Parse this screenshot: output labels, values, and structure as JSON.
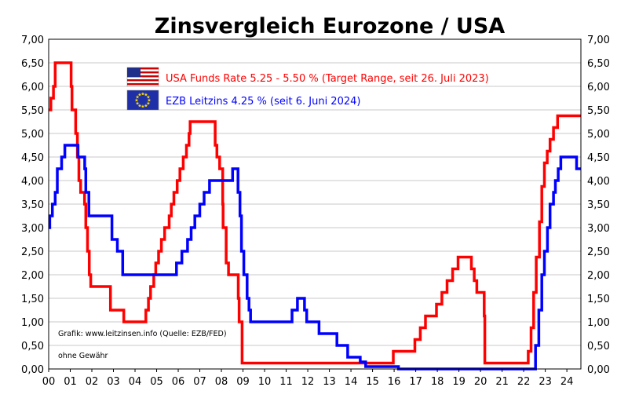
{
  "chart_data": {
    "type": "line",
    "title": "Zinsvergleich Eurozone / USA",
    "xlabel": "",
    "ylabel": "",
    "xlim": [
      2000.0,
      2024.65
    ],
    "ylim": [
      0,
      7
    ],
    "x_tick_labels": [
      "00",
      "01",
      "02",
      "03",
      "04",
      "05",
      "06",
      "07",
      "08",
      "09",
      "10",
      "11",
      "12",
      "13",
      "14",
      "15",
      "16",
      "17",
      "18",
      "19",
      "20",
      "21",
      "22",
      "23",
      "24"
    ],
    "x_tick_years": [
      2000,
      2001,
      2002,
      2003,
      2004,
      2005,
      2006,
      2007,
      2008,
      2009,
      2010,
      2011,
      2012,
      2013,
      2014,
      2015,
      2016,
      2017,
      2018,
      2019,
      2020,
      2021,
      2022,
      2023,
      2024
    ],
    "y_ticks": [
      0,
      0.5,
      1,
      1.5,
      2,
      2.5,
      3,
      3.5,
      4,
      4.5,
      5,
      5.5,
      6,
      6.5,
      7
    ],
    "y_tick_labels": [
      "0,00",
      "0,50",
      "1,00",
      "1,50",
      "2,00",
      "2,50",
      "3,00",
      "3,50",
      "4,00",
      "4,50",
      "5,00",
      "5,50",
      "6,00",
      "6,50",
      "7,00"
    ],
    "grid": true,
    "legend_position": "top-center",
    "colors": {
      "usa": "#ff0000",
      "ezb": "#0000ff",
      "grid": "#c8c8c8",
      "axis": "#000000"
    },
    "annotations": [
      "Grafik: www.leitzinsen.info (Quelle: EZB/FED)",
      "ohne Gewähr"
    ],
    "series": [
      {
        "key": "usa",
        "name": "USA Funds Rate 5.25 - 5.50 % (Target Range, seit 26. Juli 2023)",
        "flag": "usa-flag",
        "points": [
          [
            2000.0,
            5.5
          ],
          [
            2000.1,
            5.75
          ],
          [
            2000.22,
            6.0
          ],
          [
            2000.3,
            6.5
          ],
          [
            2001.0,
            6.5
          ],
          [
            2001.04,
            6.0
          ],
          [
            2001.08,
            5.5
          ],
          [
            2001.25,
            5.0
          ],
          [
            2001.33,
            4.5
          ],
          [
            2001.4,
            4.0
          ],
          [
            2001.48,
            3.75
          ],
          [
            2001.66,
            3.5
          ],
          [
            2001.72,
            3.0
          ],
          [
            2001.8,
            2.5
          ],
          [
            2001.88,
            2.0
          ],
          [
            2001.95,
            1.75
          ],
          [
            2002.86,
            1.25
          ],
          [
            2003.48,
            1.0
          ],
          [
            2004.5,
            1.25
          ],
          [
            2004.62,
            1.5
          ],
          [
            2004.72,
            1.75
          ],
          [
            2004.87,
            2.0
          ],
          [
            2004.96,
            2.25
          ],
          [
            2005.09,
            2.5
          ],
          [
            2005.22,
            2.75
          ],
          [
            2005.37,
            3.0
          ],
          [
            2005.58,
            3.25
          ],
          [
            2005.68,
            3.5
          ],
          [
            2005.8,
            3.75
          ],
          [
            2005.95,
            4.0
          ],
          [
            2006.08,
            4.25
          ],
          [
            2006.23,
            4.5
          ],
          [
            2006.38,
            4.75
          ],
          [
            2006.5,
            5.0
          ],
          [
            2006.55,
            5.25
          ],
          [
            2007.71,
            4.75
          ],
          [
            2007.79,
            4.5
          ],
          [
            2007.92,
            4.25
          ],
          [
            2008.06,
            3.5
          ],
          [
            2008.08,
            3.0
          ],
          [
            2008.22,
            2.25
          ],
          [
            2008.33,
            2.0
          ],
          [
            2008.78,
            1.5
          ],
          [
            2008.82,
            1.0
          ],
          [
            2008.96,
            0.125
          ],
          [
            2015.96,
            0.375
          ],
          [
            2016.96,
            0.625
          ],
          [
            2017.21,
            0.875
          ],
          [
            2017.45,
            1.125
          ],
          [
            2017.96,
            1.375
          ],
          [
            2018.21,
            1.625
          ],
          [
            2018.45,
            1.875
          ],
          [
            2018.71,
            2.125
          ],
          [
            2018.96,
            2.375
          ],
          [
            2019.58,
            2.125
          ],
          [
            2019.71,
            1.875
          ],
          [
            2019.83,
            1.625
          ],
          [
            2020.17,
            1.125
          ],
          [
            2020.2,
            0.125
          ],
          [
            2022.21,
            0.375
          ],
          [
            2022.34,
            0.875
          ],
          [
            2022.46,
            1.625
          ],
          [
            2022.58,
            2.375
          ],
          [
            2022.73,
            3.125
          ],
          [
            2022.84,
            3.875
          ],
          [
            2022.96,
            4.375
          ],
          [
            2023.09,
            4.625
          ],
          [
            2023.22,
            4.875
          ],
          [
            2023.38,
            5.125
          ],
          [
            2023.57,
            5.375
          ],
          [
            2024.65,
            5.375
          ]
        ]
      },
      {
        "key": "ezb",
        "name": "EZB Leitzins 4.25 %  (seit 6. Juni 2024)",
        "flag": "eu-flag",
        "points": [
          [
            2000.0,
            3.0
          ],
          [
            2000.05,
            3.25
          ],
          [
            2000.17,
            3.5
          ],
          [
            2000.3,
            3.75
          ],
          [
            2000.4,
            4.25
          ],
          [
            2000.6,
            4.5
          ],
          [
            2000.75,
            4.75
          ],
          [
            2001.36,
            4.5
          ],
          [
            2001.67,
            4.25
          ],
          [
            2001.72,
            3.75
          ],
          [
            2001.86,
            3.25
          ],
          [
            2002.93,
            2.75
          ],
          [
            2003.18,
            2.5
          ],
          [
            2003.43,
            2.0
          ],
          [
            2005.92,
            2.25
          ],
          [
            2006.17,
            2.5
          ],
          [
            2006.43,
            2.75
          ],
          [
            2006.6,
            3.0
          ],
          [
            2006.77,
            3.25
          ],
          [
            2007.0,
            3.5
          ],
          [
            2007.2,
            3.75
          ],
          [
            2007.45,
            4.0
          ],
          [
            2008.52,
            4.25
          ],
          [
            2008.77,
            3.75
          ],
          [
            2008.86,
            3.25
          ],
          [
            2008.93,
            2.5
          ],
          [
            2009.04,
            2.0
          ],
          [
            2009.19,
            1.5
          ],
          [
            2009.28,
            1.25
          ],
          [
            2009.35,
            1.0
          ],
          [
            2011.27,
            1.25
          ],
          [
            2011.52,
            1.5
          ],
          [
            2011.85,
            1.25
          ],
          [
            2011.95,
            1.0
          ],
          [
            2012.52,
            0.75
          ],
          [
            2013.35,
            0.5
          ],
          [
            2013.85,
            0.25
          ],
          [
            2014.43,
            0.15
          ],
          [
            2014.68,
            0.05
          ],
          [
            2016.2,
            0.0
          ],
          [
            2022.55,
            0.5
          ],
          [
            2022.7,
            1.25
          ],
          [
            2022.84,
            2.0
          ],
          [
            2022.96,
            2.5
          ],
          [
            2023.1,
            3.0
          ],
          [
            2023.22,
            3.5
          ],
          [
            2023.38,
            3.75
          ],
          [
            2023.47,
            4.0
          ],
          [
            2023.6,
            4.25
          ],
          [
            2023.72,
            4.5
          ],
          [
            2024.45,
            4.25
          ],
          [
            2024.65,
            4.25
          ]
        ]
      }
    ]
  }
}
